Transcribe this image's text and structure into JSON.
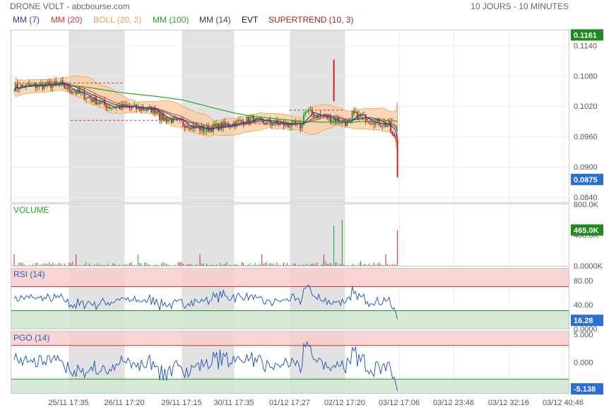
{
  "header": {
    "title": "DRONE VOLT - abcbourse.com",
    "period": "10 JOURS - 10 MINUTES"
  },
  "legend": [
    {
      "label": "MM (7)",
      "color": "#2a3fd6"
    },
    {
      "label": "MM (20)",
      "color": "#e03a3a"
    },
    {
      "label": "BOLL (20, 2)",
      "color": "#f0a050"
    },
    {
      "label": "MM (100)",
      "color": "#22aa22"
    },
    {
      "label": "MM (14)",
      "color": "#444444"
    },
    {
      "label": "EVT",
      "color": "#111111"
    },
    {
      "label": "SUPERTREND (10, 3)",
      "color": "#aa2020"
    }
  ],
  "chart_data": [
    {
      "type": "candlestick",
      "panel": "price",
      "y_ticks": [
        "0.1140",
        "0.1080",
        "0.1020",
        "0.0960",
        "0.0900",
        "0.0840"
      ],
      "ylim": [
        0.083,
        0.117
      ],
      "badges": {
        "last_high": {
          "value": "0.1161",
          "color": "#1f8a1f"
        },
        "last": {
          "value": "0.0875",
          "color": "#2a6fd6"
        }
      },
      "x_ticks": [
        "25/11 17:35",
        "26/11 17:20",
        "29/11 17:15",
        "30/11 17:35",
        "01/12 17:27",
        "02/12 17:20",
        "03/12 17:06",
        "03/12 23:46",
        "03/12 32:16",
        "03/12 40:46"
      ],
      "segments": [
        {
          "session": "25/11",
          "start": 0.1058,
          "end": 0.1064,
          "low": 0.1035,
          "high": 0.1072
        },
        {
          "session": "26/11",
          "start": 0.106,
          "end": 0.1018,
          "low": 0.1,
          "high": 0.107
        },
        {
          "session": "26/11b",
          "start": 0.102,
          "end": 0.1012,
          "low": 0.1005,
          "high": 0.1025
        },
        {
          "session": "29/11",
          "start": 0.1,
          "end": 0.0972,
          "low": 0.0962,
          "high": 0.101
        },
        {
          "session": "29/11b",
          "start": 0.0975,
          "end": 0.0995,
          "low": 0.0968,
          "high": 0.1002
        },
        {
          "session": "30/11",
          "start": 0.099,
          "end": 0.098,
          "low": 0.0966,
          "high": 0.0998
        },
        {
          "session": "01/12",
          "start": 0.101,
          "end": 0.0985,
          "low": 0.0975,
          "high": 0.1035
        },
        {
          "session": "02/12",
          "start": 0.1005,
          "end": 0.0975,
          "low": 0.088,
          "high": 0.1112
        }
      ]
    },
    {
      "type": "bar",
      "panel": "volume",
      "title": "VOLUME",
      "y_ticks": [
        "800.0K",
        "400.0K",
        "0.0000K"
      ],
      "ylim": [
        0,
        800
      ],
      "badge": {
        "value": "465.0K",
        "color": "#1f8a1f"
      }
    },
    {
      "type": "line",
      "panel": "rsi",
      "title": "RSI (14)",
      "y_ticks": [
        "80.00",
        "40.00",
        "0.0000"
      ],
      "ylim": [
        0,
        100
      ],
      "bands": {
        "upper": 70,
        "lower": 30
      },
      "badge": {
        "value": "16.28",
        "color": "#2a6fd6"
      }
    },
    {
      "type": "line",
      "panel": "pgo",
      "title": "PGO (14)",
      "y_ticks": [
        "5.000",
        "0.000",
        "-5.000"
      ],
      "ylim": [
        -5.5,
        5.5
      ],
      "bands": {
        "upper": 3,
        "lower": -3
      },
      "badge": {
        "value": "-5.138",
        "color": "#2a6fd6"
      }
    }
  ]
}
